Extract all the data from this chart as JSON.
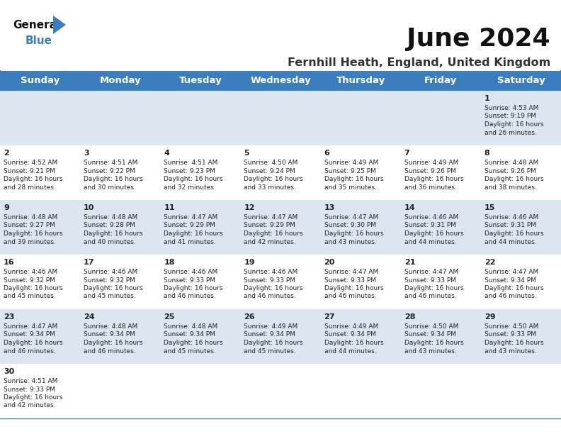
{
  "title": "June 2024",
  "subtitle": "Fernhill Heath, England, United Kingdom",
  "header_color": "#3a7ebf",
  "header_text_color": "#ffffff",
  "day_names": [
    "Sunday",
    "Monday",
    "Tuesday",
    "Wednesday",
    "Thursday",
    "Friday",
    "Saturday"
  ],
  "bg_color": "#ffffff",
  "row_colors": [
    "#dce6f1",
    "#ffffff",
    "#dce6f1",
    "#ffffff",
    "#dce6f1",
    "#ffffff"
  ],
  "grid_color": "#3a7ebf",
  "text_color": "#222222",
  "logo_black": "#111111",
  "logo_blue": "#3a7ebf",
  "calendar": [
    [
      null,
      null,
      null,
      null,
      null,
      null,
      {
        "day": 1,
        "sunrise": "4:53 AM",
        "sunset": "9:19 PM",
        "daylight": "16 hours and 26 minutes."
      }
    ],
    [
      {
        "day": 2,
        "sunrise": "4:52 AM",
        "sunset": "9:21 PM",
        "daylight": "16 hours and 28 minutes."
      },
      {
        "day": 3,
        "sunrise": "4:51 AM",
        "sunset": "9:22 PM",
        "daylight": "16 hours and 30 minutes."
      },
      {
        "day": 4,
        "sunrise": "4:51 AM",
        "sunset": "9:23 PM",
        "daylight": "16 hours and 32 minutes."
      },
      {
        "day": 5,
        "sunrise": "4:50 AM",
        "sunset": "9:24 PM",
        "daylight": "16 hours and 33 minutes."
      },
      {
        "day": 6,
        "sunrise": "4:49 AM",
        "sunset": "9:25 PM",
        "daylight": "16 hours and 35 minutes."
      },
      {
        "day": 7,
        "sunrise": "4:49 AM",
        "sunset": "9:26 PM",
        "daylight": "16 hours and 36 minutes."
      },
      {
        "day": 8,
        "sunrise": "4:48 AM",
        "sunset": "9:26 PM",
        "daylight": "16 hours and 38 minutes."
      }
    ],
    [
      {
        "day": 9,
        "sunrise": "4:48 AM",
        "sunset": "9:27 PM",
        "daylight": "16 hours and 39 minutes."
      },
      {
        "day": 10,
        "sunrise": "4:48 AM",
        "sunset": "9:28 PM",
        "daylight": "16 hours and 40 minutes."
      },
      {
        "day": 11,
        "sunrise": "4:47 AM",
        "sunset": "9:29 PM",
        "daylight": "16 hours and 41 minutes."
      },
      {
        "day": 12,
        "sunrise": "4:47 AM",
        "sunset": "9:29 PM",
        "daylight": "16 hours and 42 minutes."
      },
      {
        "day": 13,
        "sunrise": "4:47 AM",
        "sunset": "9:30 PM",
        "daylight": "16 hours and 43 minutes."
      },
      {
        "day": 14,
        "sunrise": "4:46 AM",
        "sunset": "9:31 PM",
        "daylight": "16 hours and 44 minutes."
      },
      {
        "day": 15,
        "sunrise": "4:46 AM",
        "sunset": "9:31 PM",
        "daylight": "16 hours and 44 minutes."
      }
    ],
    [
      {
        "day": 16,
        "sunrise": "4:46 AM",
        "sunset": "9:32 PM",
        "daylight": "16 hours and 45 minutes."
      },
      {
        "day": 17,
        "sunrise": "4:46 AM",
        "sunset": "9:32 PM",
        "daylight": "16 hours and 45 minutes."
      },
      {
        "day": 18,
        "sunrise": "4:46 AM",
        "sunset": "9:33 PM",
        "daylight": "16 hours and 46 minutes."
      },
      {
        "day": 19,
        "sunrise": "4:46 AM",
        "sunset": "9:33 PM",
        "daylight": "16 hours and 46 minutes."
      },
      {
        "day": 20,
        "sunrise": "4:47 AM",
        "sunset": "9:33 PM",
        "daylight": "16 hours and 46 minutes."
      },
      {
        "day": 21,
        "sunrise": "4:47 AM",
        "sunset": "9:33 PM",
        "daylight": "16 hours and 46 minutes."
      },
      {
        "day": 22,
        "sunrise": "4:47 AM",
        "sunset": "9:34 PM",
        "daylight": "16 hours and 46 minutes."
      }
    ],
    [
      {
        "day": 23,
        "sunrise": "4:47 AM",
        "sunset": "9:34 PM",
        "daylight": "16 hours and 46 minutes."
      },
      {
        "day": 24,
        "sunrise": "4:48 AM",
        "sunset": "9:34 PM",
        "daylight": "16 hours and 46 minutes."
      },
      {
        "day": 25,
        "sunrise": "4:48 AM",
        "sunset": "9:34 PM",
        "daylight": "16 hours and 45 minutes."
      },
      {
        "day": 26,
        "sunrise": "4:49 AM",
        "sunset": "9:34 PM",
        "daylight": "16 hours and 45 minutes."
      },
      {
        "day": 27,
        "sunrise": "4:49 AM",
        "sunset": "9:34 PM",
        "daylight": "16 hours and 44 minutes."
      },
      {
        "day": 28,
        "sunrise": "4:50 AM",
        "sunset": "9:34 PM",
        "daylight": "16 hours and 43 minutes."
      },
      {
        "day": 29,
        "sunrise": "4:50 AM",
        "sunset": "9:33 PM",
        "daylight": "16 hours and 43 minutes."
      }
    ],
    [
      {
        "day": 30,
        "sunrise": "4:51 AM",
        "sunset": "9:33 PM",
        "daylight": "16 hours and 42 minutes."
      },
      null,
      null,
      null,
      null,
      null,
      null
    ]
  ]
}
